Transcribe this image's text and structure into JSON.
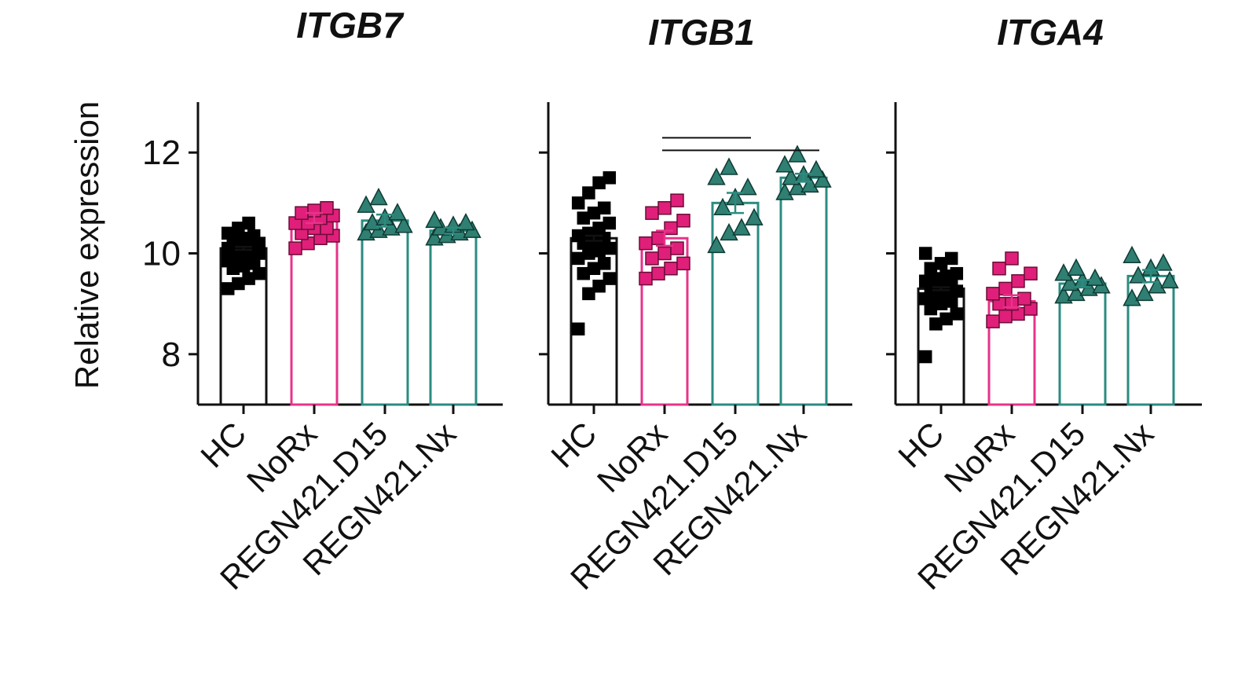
{
  "chart_data": {
    "type": "bar",
    "ylabel": "Relative expression",
    "ylim": [
      7,
      13
    ],
    "yticks": [
      8,
      10,
      12
    ],
    "categories": [
      "HC",
      "NoRx",
      "REGN421.D15",
      "REGN421.Nx"
    ],
    "colors": {
      "HC": "#111111",
      "NoRx": "#e8338a",
      "REGN421.D15": "#2a8c80",
      "REGN421.Nx": "#2a8c80",
      "marker_teal": "#2f7f72",
      "marker_pink": "#e01f7a",
      "marker_black": "#000000"
    },
    "markers": {
      "HC": "square",
      "NoRx": "square",
      "REGN421.D15": "triangle",
      "REGN421.Nx": "triangle"
    },
    "panels": [
      {
        "title": "ITGB7",
        "bars": [
          10.1,
          10.7,
          10.65,
          10.45
        ],
        "sem": [
          0.03,
          0.1,
          0.12,
          0.06
        ],
        "points": [
          [
            9.3,
            9.4,
            9.5,
            9.6,
            9.7,
            9.75,
            9.8,
            9.85,
            9.9,
            9.95,
            10.0,
            10.0,
            10.05,
            10.1,
            10.1,
            10.15,
            10.2,
            10.2,
            10.25,
            10.3,
            10.35,
            10.4,
            10.5,
            10.6
          ],
          [
            10.1,
            10.2,
            10.3,
            10.35,
            10.4,
            10.5,
            10.5,
            10.6,
            10.6,
            10.7,
            10.75,
            10.8,
            10.85,
            10.9
          ],
          [
            10.4,
            10.45,
            10.5,
            10.55,
            10.6,
            10.7,
            10.8,
            10.95,
            11.1
          ],
          [
            10.3,
            10.35,
            10.4,
            10.45,
            10.5,
            10.55,
            10.6,
            10.65
          ]
        ],
        "comparisons": []
      },
      {
        "title": "ITGB1",
        "bars": [
          10.3,
          10.3,
          11.0,
          11.5
        ],
        "sem": [
          0.05,
          0.15,
          0.2,
          0.08
        ],
        "points": [
          [
            8.5,
            9.2,
            9.35,
            9.5,
            9.6,
            9.7,
            9.8,
            9.9,
            10.0,
            10.05,
            10.1,
            10.2,
            10.25,
            10.3,
            10.35,
            10.4,
            10.5,
            10.6,
            10.7,
            10.8,
            10.9,
            11.0,
            11.2,
            11.4,
            11.5
          ],
          [
            9.5,
            9.6,
            9.7,
            9.8,
            9.9,
            10.0,
            10.1,
            10.2,
            10.3,
            10.5,
            10.65,
            10.8,
            10.9,
            11.05
          ],
          [
            10.15,
            10.4,
            10.5,
            10.7,
            10.9,
            11.1,
            11.3,
            11.5,
            11.7
          ],
          [
            11.2,
            11.3,
            11.35,
            11.45,
            11.5,
            11.55,
            11.65,
            11.75,
            11.95
          ]
        ],
        "comparisons": [
          {
            "from": "NoRx",
            "to": "REGN421.D15",
            "level": 12.2
          },
          {
            "from": "NoRx",
            "to": "REGN421.Nx",
            "level": 11.95
          }
        ]
      },
      {
        "title": "ITGA4",
        "bars": [
          9.3,
          9.05,
          9.4,
          9.55
        ],
        "sem": [
          0.03,
          0.12,
          0.07,
          0.12
        ],
        "points": [
          [
            7.95,
            8.6,
            8.7,
            8.8,
            8.9,
            9.0,
            9.05,
            9.1,
            9.15,
            9.2,
            9.25,
            9.3,
            9.35,
            9.4,
            9.45,
            9.5,
            9.55,
            9.6,
            9.7,
            9.8,
            9.9,
            10.0
          ],
          [
            8.65,
            8.75,
            8.8,
            8.9,
            9.0,
            9.0,
            9.1,
            9.2,
            9.3,
            9.45,
            9.6,
            9.7,
            9.9
          ],
          [
            9.15,
            9.2,
            9.3,
            9.35,
            9.4,
            9.45,
            9.5,
            9.6,
            9.7
          ],
          [
            9.1,
            9.2,
            9.35,
            9.45,
            9.55,
            9.7,
            9.8,
            9.95
          ]
        ],
        "comparisons": []
      }
    ]
  }
}
